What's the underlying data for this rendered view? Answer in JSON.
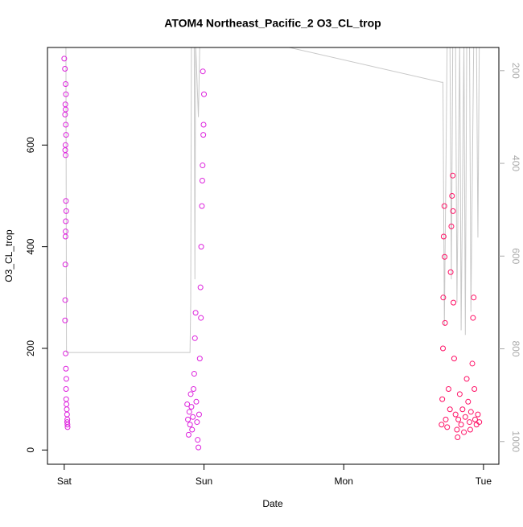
{
  "chart_data": {
    "type": "scatter",
    "title": "ATOM4 Northeast_Pacific_2 O3_CL_trop",
    "xlabel": "Date",
    "ylabel": "O3_CL_trop",
    "xlim": [
      -0.12,
      3.11
    ],
    "xticks": [
      {
        "value": 0,
        "label": "Sat"
      },
      {
        "value": 1,
        "label": "Sun"
      },
      {
        "value": 2,
        "label": "Mon"
      },
      {
        "value": 3,
        "label": "Tue"
      }
    ],
    "ylim": [
      -28,
      792
    ],
    "yticks": [
      0,
      200,
      400,
      600
    ],
    "y2lim": [
      1049,
      150
    ],
    "y2ticks": [
      200,
      400,
      600,
      800,
      1000
    ],
    "series": [
      {
        "color": "#dd22dd",
        "x": [
          0.0,
          0.005,
          0.01,
          0.012,
          0.008,
          0.01,
          0.006,
          0.011,
          0.013,
          0.009,
          0.007,
          0.01,
          0.012,
          0.014,
          0.011,
          0.01,
          0.009,
          0.008,
          0.007,
          0.006,
          0.01,
          0.012,
          0.015,
          0.013,
          0.014,
          0.016,
          0.018,
          0.02,
          0.022,
          0.021,
          0.023,
          0.024,
          0.88,
          0.885,
          0.89,
          0.895,
          0.9,
          0.905,
          0.91,
          0.915,
          0.92,
          0.925,
          0.93,
          0.935,
          0.94,
          0.945,
          0.95,
          0.955,
          0.96,
          0.965,
          0.97,
          0.975,
          0.978,
          0.98,
          0.985,
          0.988,
          0.99,
          0.992,
          0.995,
          0.997,
          1.0
        ],
        "values": [
          770,
          750,
          720,
          700,
          680,
          670,
          660,
          640,
          620,
          600,
          590,
          580,
          490,
          470,
          450,
          430,
          420,
          365,
          295,
          255,
          190,
          160,
          140,
          120,
          100,
          90,
          80,
          70,
          60,
          55,
          50,
          45,
          90,
          60,
          30,
          75,
          50,
          110,
          85,
          40,
          65,
          120,
          150,
          220,
          270,
          95,
          55,
          20,
          5,
          70,
          180,
          320,
          260,
          400,
          480,
          530,
          560,
          745,
          620,
          640,
          700
        ]
      },
      {
        "color": "#ff1166",
        "x": [
          2.7,
          2.705,
          2.71,
          2.712,
          2.715,
          2.72,
          2.722,
          2.725,
          2.73,
          2.74,
          2.75,
          2.76,
          2.765,
          2.77,
          2.775,
          2.78,
          2.782,
          2.785,
          2.79,
          2.8,
          2.81,
          2.815,
          2.82,
          2.83,
          2.84,
          2.85,
          2.86,
          2.87,
          2.88,
          2.89,
          2.9,
          2.905,
          2.91,
          2.92,
          2.925,
          2.93,
          2.935,
          2.94,
          2.95,
          2.96,
          2.97
        ],
        "values": [
          50,
          100,
          200,
          300,
          420,
          480,
          380,
          250,
          60,
          45,
          120,
          80,
          350,
          440,
          500,
          540,
          470,
          290,
          180,
          70,
          40,
          25,
          60,
          110,
          50,
          80,
          35,
          65,
          140,
          95,
          55,
          40,
          75,
          170,
          260,
          300,
          120,
          60,
          50,
          70,
          55
        ]
      },
      {
        "type": "line",
        "axis": "y2",
        "color": "#c8c8c8",
        "x": [
          0.0,
          0.012,
          0.016,
          0.9,
          0.905,
          0.91,
          0.93,
          0.935,
          0.94,
          0.96,
          0.97,
          1.0,
          1.61,
          2.7,
          2.71,
          2.72,
          2.74,
          2.76,
          2.77,
          2.78,
          2.8,
          2.81,
          2.83,
          2.84,
          2.86,
          2.87,
          2.88,
          2.9,
          2.91,
          2.93,
          2.95,
          2.96,
          2.97
        ],
        "values": [
          140,
          140,
          808,
          808,
          700,
          140,
          140,
          650,
          140,
          300,
          140,
          140,
          150,
          225,
          225,
          750,
          140,
          140,
          650,
          140,
          140,
          700,
          140,
          760,
          140,
          770,
          140,
          140,
          720,
          140,
          140,
          560,
          140
        ]
      }
    ]
  }
}
